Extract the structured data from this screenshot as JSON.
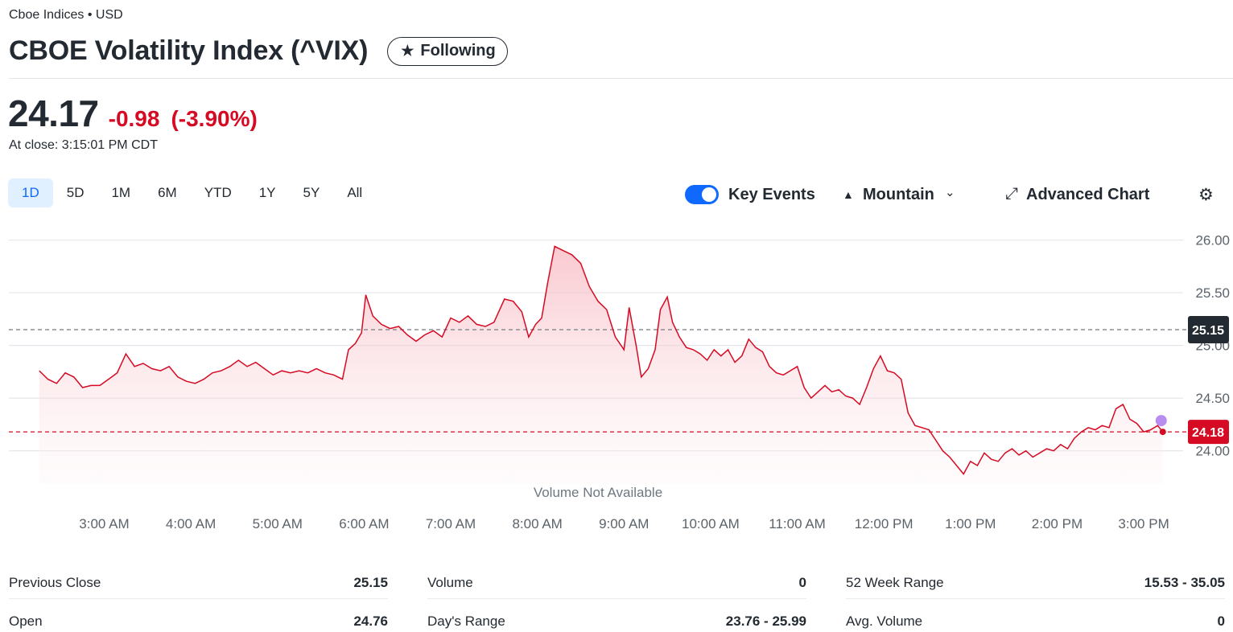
{
  "header": {
    "meta": "Cboe Indices • USD",
    "title": "CBOE Volatility Index (^VIX)",
    "follow_label": "Following"
  },
  "quote": {
    "price": "24.17",
    "change": "-0.98",
    "change_percent": "(-3.90%)",
    "at_close": "At close: 3:15:01 PM CDT"
  },
  "ranges": [
    "1D",
    "5D",
    "1M",
    "6M",
    "YTD",
    "1Y",
    "5Y",
    "All"
  ],
  "active_range": "1D",
  "tools": {
    "key_events": "Key Events",
    "chart_type": "Mountain",
    "advanced": "Advanced Chart"
  },
  "colors": {
    "accent": "#0f69ff",
    "negative": "#d60a22",
    "line": "#d60a22"
  },
  "chart_data": {
    "type": "area",
    "x_tick_labels": [
      "3:00 AM",
      "4:00 AM",
      "5:00 AM",
      "6:00 AM",
      "7:00 AM",
      "8:00 AM",
      "9:00 AM",
      "10:00 AM",
      "11:00 AM",
      "12:00 PM",
      "1:00 PM",
      "2:00 PM",
      "3:00 PM"
    ],
    "x_tick_hours": [
      3,
      4,
      5,
      6,
      7,
      8,
      9,
      10,
      11,
      12,
      13,
      14,
      15
    ],
    "x_range_hours": [
      2.15,
      15.25
    ],
    "y_ticks": [
      "24.00",
      "24.50",
      "25.00",
      "25.50",
      "26.00"
    ],
    "y_tick_values": [
      24.0,
      24.5,
      25.0,
      25.5,
      26.0
    ],
    "ylim": [
      23.7,
      26.05
    ],
    "previous_close": 25.15,
    "previous_close_label": "25.15",
    "last_label": "24.18",
    "last_value": 24.18,
    "volume_note": "Volume Not Available",
    "points": [
      [
        2.25,
        24.76
      ],
      [
        2.35,
        24.68
      ],
      [
        2.45,
        24.64
      ],
      [
        2.55,
        24.74
      ],
      [
        2.65,
        24.7
      ],
      [
        2.75,
        24.6
      ],
      [
        2.85,
        24.62
      ],
      [
        2.95,
        24.62
      ],
      [
        3.05,
        24.68
      ],
      [
        3.15,
        24.74
      ],
      [
        3.25,
        24.92
      ],
      [
        3.35,
        24.8
      ],
      [
        3.45,
        24.83
      ],
      [
        3.55,
        24.78
      ],
      [
        3.65,
        24.76
      ],
      [
        3.75,
        24.8
      ],
      [
        3.85,
        24.7
      ],
      [
        3.95,
        24.66
      ],
      [
        4.05,
        24.64
      ],
      [
        4.15,
        24.68
      ],
      [
        4.25,
        24.74
      ],
      [
        4.35,
        24.76
      ],
      [
        4.45,
        24.8
      ],
      [
        4.55,
        24.86
      ],
      [
        4.65,
        24.8
      ],
      [
        4.75,
        24.84
      ],
      [
        4.85,
        24.78
      ],
      [
        4.95,
        24.72
      ],
      [
        5.05,
        24.76
      ],
      [
        5.15,
        24.74
      ],
      [
        5.25,
        24.76
      ],
      [
        5.35,
        24.74
      ],
      [
        5.45,
        24.78
      ],
      [
        5.55,
        24.74
      ],
      [
        5.65,
        24.72
      ],
      [
        5.75,
        24.68
      ],
      [
        5.82,
        24.96
      ],
      [
        5.9,
        25.02
      ],
      [
        5.97,
        25.12
      ],
      [
        6.02,
        25.48
      ],
      [
        6.1,
        25.28
      ],
      [
        6.2,
        25.2
      ],
      [
        6.3,
        25.16
      ],
      [
        6.4,
        25.18
      ],
      [
        6.5,
        25.1
      ],
      [
        6.6,
        25.04
      ],
      [
        6.7,
        25.1
      ],
      [
        6.8,
        25.14
      ],
      [
        6.9,
        25.08
      ],
      [
        7.0,
        25.26
      ],
      [
        7.1,
        25.22
      ],
      [
        7.2,
        25.28
      ],
      [
        7.3,
        25.2
      ],
      [
        7.4,
        25.18
      ],
      [
        7.5,
        25.22
      ],
      [
        7.62,
        25.44
      ],
      [
        7.72,
        25.42
      ],
      [
        7.82,
        25.32
      ],
      [
        7.9,
        25.08
      ],
      [
        7.98,
        25.2
      ],
      [
        8.05,
        25.26
      ],
      [
        8.12,
        25.6
      ],
      [
        8.2,
        25.94
      ],
      [
        8.3,
        25.9
      ],
      [
        8.4,
        25.86
      ],
      [
        8.5,
        25.78
      ],
      [
        8.6,
        25.56
      ],
      [
        8.7,
        25.42
      ],
      [
        8.8,
        25.34
      ],
      [
        8.9,
        25.08
      ],
      [
        9.0,
        24.96
      ],
      [
        9.06,
        25.36
      ],
      [
        9.14,
        25.0
      ],
      [
        9.2,
        24.7
      ],
      [
        9.28,
        24.78
      ],
      [
        9.36,
        24.96
      ],
      [
        9.42,
        25.34
      ],
      [
        9.5,
        25.46
      ],
      [
        9.56,
        25.22
      ],
      [
        9.64,
        25.08
      ],
      [
        9.72,
        24.98
      ],
      [
        9.8,
        24.96
      ],
      [
        9.88,
        24.92
      ],
      [
        9.96,
        24.86
      ],
      [
        10.04,
        24.96
      ],
      [
        10.12,
        24.9
      ],
      [
        10.2,
        24.96
      ],
      [
        10.28,
        24.84
      ],
      [
        10.36,
        24.9
      ],
      [
        10.44,
        25.06
      ],
      [
        10.52,
        24.98
      ],
      [
        10.6,
        24.94
      ],
      [
        10.68,
        24.8
      ],
      [
        10.76,
        24.74
      ],
      [
        10.84,
        24.72
      ],
      [
        10.92,
        24.76
      ],
      [
        11.0,
        24.8
      ],
      [
        11.08,
        24.6
      ],
      [
        11.16,
        24.5
      ],
      [
        11.24,
        24.56
      ],
      [
        11.32,
        24.62
      ],
      [
        11.4,
        24.56
      ],
      [
        11.48,
        24.58
      ],
      [
        11.56,
        24.52
      ],
      [
        11.64,
        24.5
      ],
      [
        11.72,
        24.44
      ],
      [
        11.8,
        24.6
      ],
      [
        11.88,
        24.78
      ],
      [
        11.96,
        24.9
      ],
      [
        12.04,
        24.76
      ],
      [
        12.12,
        24.74
      ],
      [
        12.2,
        24.68
      ],
      [
        12.28,
        24.36
      ],
      [
        12.36,
        24.24
      ],
      [
        12.44,
        24.22
      ],
      [
        12.52,
        24.2
      ],
      [
        12.6,
        24.1
      ],
      [
        12.68,
        24.0
      ],
      [
        12.76,
        23.94
      ],
      [
        12.84,
        23.86
      ],
      [
        12.92,
        23.78
      ],
      [
        13.0,
        23.9
      ],
      [
        13.08,
        23.86
      ],
      [
        13.16,
        23.98
      ],
      [
        13.24,
        23.92
      ],
      [
        13.32,
        23.9
      ],
      [
        13.4,
        23.98
      ],
      [
        13.48,
        24.02
      ],
      [
        13.56,
        23.96
      ],
      [
        13.64,
        24.0
      ],
      [
        13.72,
        23.94
      ],
      [
        13.8,
        23.98
      ],
      [
        13.88,
        24.02
      ],
      [
        13.96,
        24.0
      ],
      [
        14.04,
        24.06
      ],
      [
        14.12,
        24.02
      ],
      [
        14.2,
        24.12
      ],
      [
        14.28,
        24.18
      ],
      [
        14.36,
        24.22
      ],
      [
        14.44,
        24.2
      ],
      [
        14.52,
        24.24
      ],
      [
        14.6,
        24.22
      ],
      [
        14.68,
        24.4
      ],
      [
        14.76,
        24.44
      ],
      [
        14.84,
        24.3
      ],
      [
        14.92,
        24.26
      ],
      [
        15.0,
        24.18
      ],
      [
        15.08,
        24.2
      ],
      [
        15.16,
        24.24
      ],
      [
        15.22,
        24.18
      ]
    ]
  },
  "stats": [
    {
      "label": "Previous Close",
      "value": "25.15"
    },
    {
      "label": "Volume",
      "value": "0"
    },
    {
      "label": "52 Week Range",
      "value": "15.53 - 35.05"
    },
    {
      "label": "Open",
      "value": "24.76"
    },
    {
      "label": "Day's Range",
      "value": "23.76 - 25.99"
    },
    {
      "label": "Avg. Volume",
      "value": "0"
    }
  ]
}
